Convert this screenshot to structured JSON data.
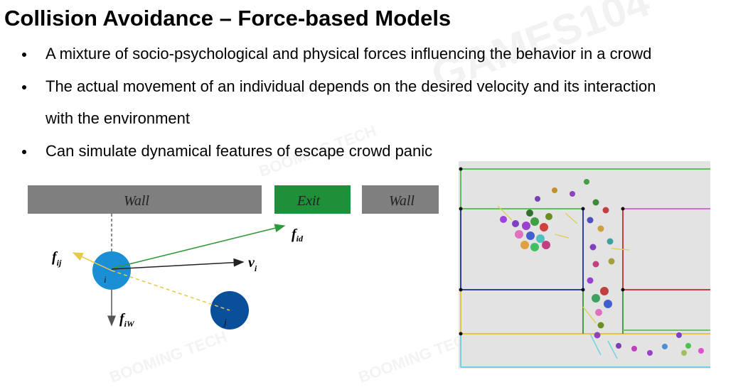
{
  "slide": {
    "title": "Collision Avoidance – Force-based Models",
    "bullets": [
      "A mixture of socio-psychological and physical forces influencing the behavior in a crowd",
      "The actual movement of an individual depends on the desired velocity and its interaction",
      "with the environment",
      "Can simulate dynamical features of escape crowd panic"
    ]
  },
  "diagram": {
    "wall_left": "Wall",
    "exit": "Exit",
    "wall_right": "Wall",
    "agent_i": "i",
    "agent_j": "j",
    "force_fid": "f",
    "force_fid_sub": "id",
    "force_fij": "f",
    "force_fij_sub": "ij",
    "velocity": "v",
    "velocity_sub": "i",
    "force_fiw": "f",
    "force_fiw_sub": "iW",
    "colors": {
      "wall": "#7f7f7f",
      "exit": "#1f8f3a",
      "agent_i": "#1a8fd6",
      "agent_j": "#0a4f9a",
      "desired_force": "#2f9a3c",
      "interaction": "#e6c84a"
    }
  },
  "watermark": {
    "games": "GAMES104",
    "booming": "BOOMING TECH"
  }
}
